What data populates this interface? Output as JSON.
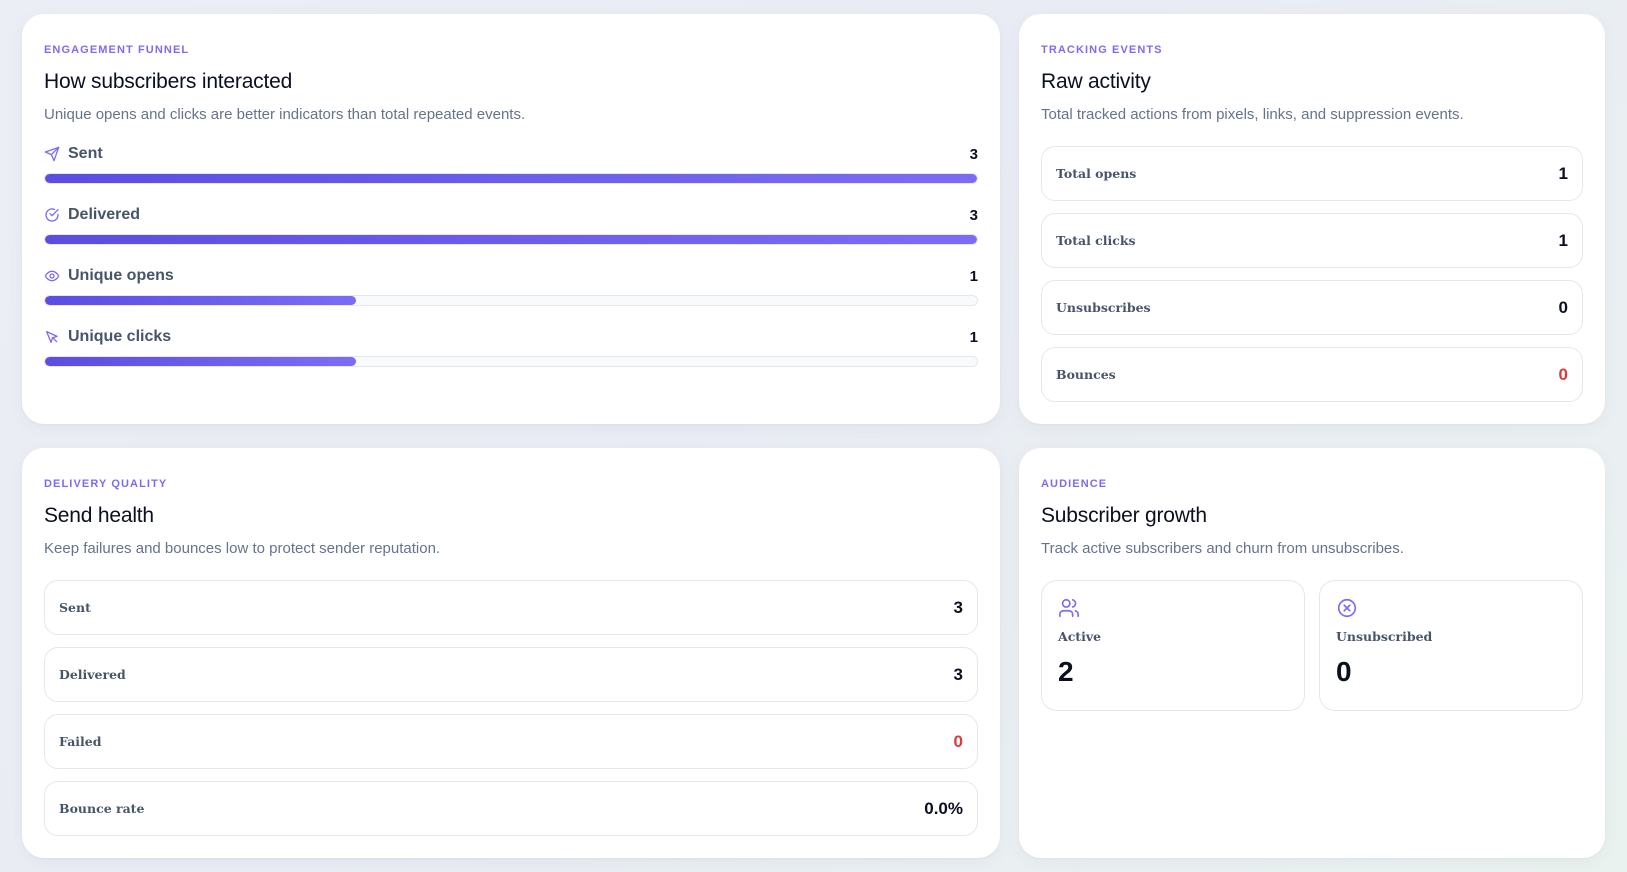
{
  "colors": {
    "accent": "#7c6cf0",
    "bar_start": "#5b4de0",
    "bar_end": "#7c6cf5",
    "danger": "#dc3b3b"
  },
  "funnel_card": {
    "eyebrow": "ENGAGEMENT FUNNEL",
    "title": "How subscribers interacted",
    "subtitle": "Unique opens and clicks are better indicators than total repeated events.",
    "rows": [
      {
        "label": "Sent",
        "value": "3",
        "icon": "send-icon",
        "fill_fraction": 1.0
      },
      {
        "label": "Delivered",
        "value": "3",
        "icon": "check-circle-icon",
        "fill_fraction": 1.0
      },
      {
        "label": "Unique opens",
        "value": "1",
        "icon": "eye-icon",
        "fill_fraction": 0.3333
      },
      {
        "label": "Unique clicks",
        "value": "1",
        "icon": "cursor-click-icon",
        "fill_fraction": 0.3333
      }
    ]
  },
  "tracking_card": {
    "eyebrow": "TRACKING EVENTS",
    "title": "Raw activity",
    "subtitle": "Total tracked actions from pixels, links, and suppression events.",
    "rows": [
      {
        "label": "Total opens",
        "value": "1"
      },
      {
        "label": "Total clicks",
        "value": "1"
      },
      {
        "label": "Unsubscribes",
        "value": "0"
      },
      {
        "label": "Bounces",
        "value": "0",
        "status": "danger"
      }
    ]
  },
  "health_card": {
    "eyebrow": "DELIVERY QUALITY",
    "title": "Send health",
    "subtitle": "Keep failures and bounces low to protect sender reputation.",
    "rows": [
      {
        "label": "Sent",
        "value": "3"
      },
      {
        "label": "Delivered",
        "value": "3"
      },
      {
        "label": "Failed",
        "value": "0",
        "status": "danger"
      },
      {
        "label": "Bounce rate",
        "value": "0.0%"
      }
    ]
  },
  "audience_card": {
    "eyebrow": "AUDIENCE",
    "title": "Subscriber growth",
    "subtitle": "Track active subscribers and churn from unsubscribes.",
    "tiles": [
      {
        "label": "Active",
        "value": "2",
        "icon": "users-icon"
      },
      {
        "label": "Unsubscribed",
        "value": "0",
        "icon": "x-circle-icon"
      }
    ]
  }
}
